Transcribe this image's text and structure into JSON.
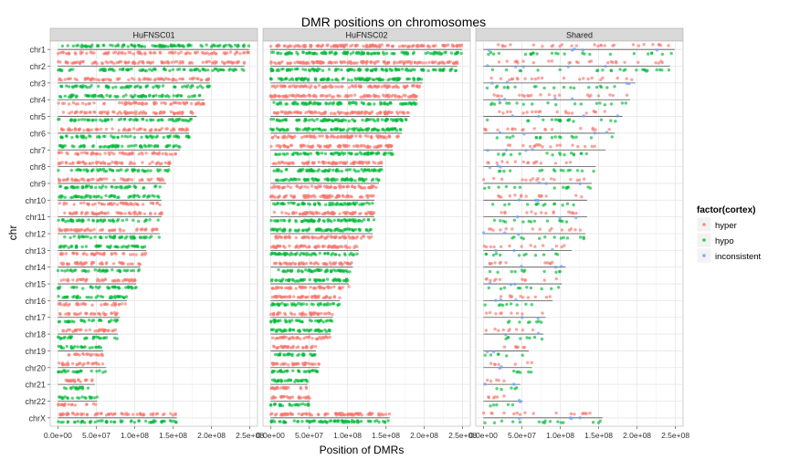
{
  "chart_data": {
    "type": "scatter",
    "title": "DMR positions on chromosomes",
    "xlabel": "Position of DMRs",
    "ylabel": "chr",
    "xlim": [
      -10000000,
      260000000
    ],
    "x_ticks": [
      0,
      50000000,
      100000000,
      150000000,
      200000000,
      250000000
    ],
    "x_tick_labels": [
      "0.0e+00",
      "5.0e+07",
      "1.0e+08",
      "1.5e+08",
      "2.0e+08",
      "2.5e+08"
    ],
    "chromosomes": [
      "chr1",
      "chr2",
      "chr3",
      "chr4",
      "chr5",
      "chr6",
      "chr7",
      "chr8",
      "chr9",
      "chr10",
      "chr11",
      "chr12",
      "chr13",
      "chr14",
      "chr15",
      "chr16",
      "chr17",
      "chr18",
      "chr19",
      "chr20",
      "chr21",
      "chr22",
      "chrX"
    ],
    "chromosome_lengths": [
      249000000,
      243000000,
      198000000,
      191000000,
      181000000,
      171000000,
      159000000,
      146000000,
      141000000,
      135000000,
      135000000,
      133000000,
      115000000,
      107000000,
      102000000,
      90000000,
      81000000,
      78000000,
      59000000,
      63000000,
      48000000,
      51000000,
      155000000
    ],
    "panels": [
      "HuFNSC01",
      "HuFNSC02",
      "Shared"
    ],
    "legend": {
      "title": "factor(cortex)",
      "position": "right",
      "entries": [
        {
          "label": "hyper",
          "color": "#F8766D"
        },
        {
          "label": "hypo",
          "color": "#00BA38"
        },
        {
          "label": "inconsistent",
          "color": "#619CFF"
        }
      ]
    },
    "grid": true
  }
}
